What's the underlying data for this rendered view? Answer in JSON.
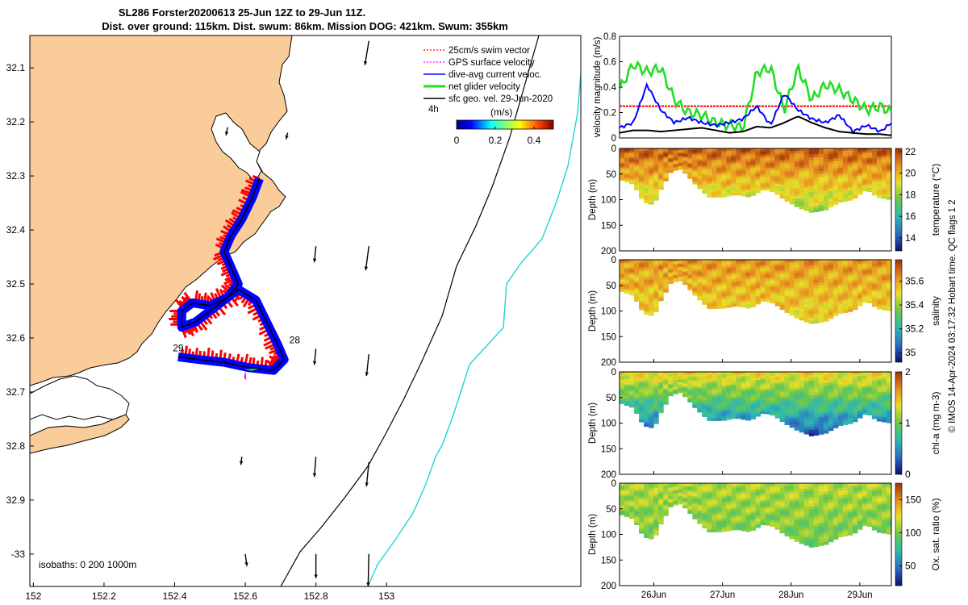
{
  "title": {
    "line1": "SL286 Forster20200613 25-Jun 12Z to 29-Jun 11Z.",
    "line2": "Dist. over ground: 115km. Dist. swum: 86km. Mission DOG: 421km. Swum: 355km"
  },
  "colors": {
    "land": "#FACC99",
    "swim": "#FF0000",
    "gps": "#FF00FF",
    "dive_avg": "#0000FF",
    "net": "#22DD22",
    "geo": "#000000",
    "isobath_1000": "#22D3D3"
  },
  "chart_data": [
    {
      "type": "map",
      "name": "track-map",
      "x_ticks": [
        "152",
        "152.2",
        "152.4",
        "152.6",
        "152.8",
        "153"
      ],
      "x_tick_values": [
        152,
        152.2,
        152.4,
        152.6,
        152.8,
        153
      ],
      "y_ticks": [
        "32.1",
        "32.2",
        "32.3",
        "32.4",
        "32.5",
        "32.6",
        "32.7",
        "32.8",
        "32.9",
        "-33"
      ],
      "y_tick_values": [
        32.1,
        32.2,
        32.3,
        32.4,
        32.5,
        32.6,
        32.7,
        32.8,
        32.9,
        33.0
      ],
      "xlim": [
        151.99,
        153.55
      ],
      "ylim": [
        32.04,
        33.06
      ],
      "legend": [
        {
          "label": "25cm/s swim vector",
          "color": "#FF0000"
        },
        {
          "label": "GPS surface velocity",
          "color": "#FF00FF"
        },
        {
          "label": "dive-avg current veloc.",
          "color": "#0000FF"
        },
        {
          "label": "net glider velocity",
          "color": "#22DD22"
        },
        {
          "label": "sfc geo. vel. 29-Jun-2020",
          "color": "#000000"
        }
      ],
      "legend_note": "4h",
      "colorbar": {
        "label": "(m/s)",
        "ticks": [
          "0",
          "0.2",
          "0.4"
        ],
        "tick_values": [
          0,
          0.2,
          0.4
        ],
        "range": [
          0,
          0.5
        ]
      },
      "isobaths_label": "isobaths: 0   200  1000m",
      "track_labels": [
        {
          "text": "28",
          "lon": 152.74,
          "lat": 32.61
        },
        {
          "text": "29",
          "lon": 152.41,
          "lat": 32.625
        }
      ],
      "track": [
        [
          152.64,
          32.305
        ],
        [
          152.62,
          32.34
        ],
        [
          152.59,
          32.38
        ],
        [
          152.56,
          32.41
        ],
        [
          152.54,
          32.44
        ],
        [
          152.56,
          32.47
        ],
        [
          152.58,
          32.5
        ],
        [
          152.55,
          32.525
        ],
        [
          152.5,
          32.54
        ],
        [
          152.45,
          32.535
        ],
        [
          152.42,
          32.55
        ],
        [
          152.42,
          32.58
        ],
        [
          152.46,
          32.57
        ],
        [
          152.51,
          32.545
        ],
        [
          152.58,
          32.51
        ],
        [
          152.63,
          32.53
        ],
        [
          152.66,
          32.57
        ],
        [
          152.69,
          32.61
        ],
        [
          152.71,
          32.64
        ],
        [
          152.68,
          32.66
        ],
        [
          152.61,
          32.655
        ],
        [
          152.54,
          32.645
        ],
        [
          152.47,
          32.64
        ],
        [
          152.41,
          32.635
        ]
      ],
      "geo_vectors": [
        {
          "lon": 152.55,
          "lat": 32.21,
          "u": -0.02,
          "v": -0.1
        },
        {
          "lon": 152.72,
          "lat": 32.22,
          "u": -0.02,
          "v": -0.08
        },
        {
          "lon": 152.8,
          "lat": 32.43,
          "u": -0.02,
          "v": -0.2
        },
        {
          "lon": 152.95,
          "lat": 32.43,
          "u": -0.04,
          "v": -0.3
        },
        {
          "lon": 152.95,
          "lat": 32.05,
          "u": -0.05,
          "v": -0.3
        },
        {
          "lon": 152.8,
          "lat": 32.62,
          "u": -0.02,
          "v": -0.2
        },
        {
          "lon": 152.95,
          "lat": 32.63,
          "u": -0.03,
          "v": -0.27
        },
        {
          "lon": 152.59,
          "lat": 32.82,
          "u": -0.01,
          "v": -0.1
        },
        {
          "lon": 152.8,
          "lat": 32.82,
          "u": -0.02,
          "v": -0.25
        },
        {
          "lon": 152.95,
          "lat": 32.83,
          "u": -0.03,
          "v": -0.3
        },
        {
          "lon": 152.6,
          "lat": 33.0,
          "u": 0.02,
          "v": -0.15
        },
        {
          "lon": 152.8,
          "lat": 33.0,
          "u": 0.0,
          "v": -0.3
        },
        {
          "lon": 152.95,
          "lat": 33.0,
          "u": -0.01,
          "v": -0.4
        }
      ]
    },
    {
      "type": "line",
      "name": "velocity-magnitude",
      "ylabel": "velocity magnitude (m/s)",
      "ylim": [
        0,
        0.8
      ],
      "y_ticks": [
        "0",
        "0.2",
        "0.4",
        "0.6",
        "0.8"
      ],
      "y_tick_values": [
        0,
        0.2,
        0.4,
        0.6,
        0.8
      ],
      "xlim": [
        25.5,
        29.46
      ],
      "x": [
        25.5,
        25.7,
        25.9,
        26.1,
        26.3,
        26.5,
        26.7,
        26.9,
        27.1,
        27.3,
        27.5,
        27.7,
        27.9,
        28.1,
        28.3,
        28.5,
        28.7,
        28.9,
        29.1,
        29.3,
        29.46
      ],
      "series": [
        {
          "color": "#22DD22",
          "values": [
            0.38,
            0.58,
            0.52,
            0.55,
            0.3,
            0.2,
            0.18,
            0.12,
            0.1,
            0.08,
            0.52,
            0.55,
            0.22,
            0.55,
            0.3,
            0.42,
            0.38,
            0.3,
            0.22,
            0.25,
            0.2
          ]
        },
        {
          "color": "#0000FF",
          "values": [
            0.08,
            0.12,
            0.42,
            0.22,
            0.12,
            0.16,
            0.12,
            0.1,
            0.12,
            0.15,
            0.25,
            0.1,
            0.35,
            0.22,
            0.15,
            0.12,
            0.18,
            0.05,
            0.1,
            0.05,
            0.12
          ]
        },
        {
          "color": "#000000",
          "values": [
            0.04,
            0.06,
            0.06,
            0.05,
            0.06,
            0.07,
            0.08,
            0.06,
            0.04,
            0.05,
            0.09,
            0.08,
            0.12,
            0.17,
            0.12,
            0.08,
            0.05,
            0.04,
            0.03,
            0.03,
            0.02
          ]
        }
      ],
      "reference_value": 0.25,
      "reference_color": "#FF0000"
    },
    {
      "type": "heatmap",
      "name": "temperature-section",
      "ylabel": "Depth (m)",
      "clabel": "temperature (°C)",
      "c_ticks": [
        "14",
        "16",
        "18",
        "20",
        "22"
      ],
      "c_tick_values": [
        14,
        16,
        18,
        20,
        22
      ],
      "clim": [
        12.8,
        22.3
      ],
      "c_colors": [
        "#10106A",
        "#2B6CC4",
        "#2EB8B0",
        "#6CC84A",
        "#E8E02A",
        "#E89020",
        "#A03008"
      ],
      "value_range": [
        18,
        21.6
      ]
    },
    {
      "type": "heatmap",
      "name": "salinity-section",
      "ylabel": "Depth (m)",
      "clabel": "salinity",
      "c_ticks": [
        "35",
        "35.2",
        "35.4",
        "35.6"
      ],
      "c_tick_values": [
        35,
        35.2,
        35.4,
        35.6
      ],
      "clim": [
        34.92,
        35.78
      ],
      "c_colors": [
        "#10106A",
        "#2B6CC4",
        "#2EB8B0",
        "#6CC84A",
        "#E8E02A",
        "#E89020",
        "#A03008"
      ],
      "value_range": [
        35.5,
        35.62
      ]
    },
    {
      "type": "heatmap",
      "name": "chla-section",
      "ylabel": "Depth (m)",
      "clabel": "chl-a (mg m-3)",
      "c_ticks": [
        "0",
        "1",
        "2"
      ],
      "c_tick_values": [
        0,
        1,
        2
      ],
      "clim": [
        0,
        2
      ],
      "c_colors": [
        "#10106A",
        "#2B6CC4",
        "#2EB8B0",
        "#6CC84A",
        "#E8E02A",
        "#E89020",
        "#A03008"
      ],
      "value_range": [
        0.2,
        1.4
      ]
    },
    {
      "type": "heatmap",
      "name": "oxygen-section",
      "ylabel": "Depth (m)",
      "clabel": "Ox. sat. ratio (%)",
      "c_ticks": [
        "50",
        "100",
        "150"
      ],
      "c_tick_values": [
        50,
        100,
        150
      ],
      "clim": [
        20,
        175
      ],
      "c_colors": [
        "#10106A",
        "#2B6CC4",
        "#2EB8B0",
        "#6CC84A",
        "#E8E02A",
        "#E89020",
        "#A03008"
      ],
      "value_range": [
        96,
        112
      ]
    }
  ],
  "sections": {
    "y_ticks": [
      "0",
      "50",
      "100",
      "150",
      "200"
    ],
    "y_tick_values": [
      0,
      50,
      100,
      150,
      200
    ],
    "ylim": [
      0,
      200
    ],
    "x_ticks": [
      "26Jun",
      "27Jun",
      "28Jun",
      "29Jun"
    ],
    "x_tick_values": [
      26,
      27,
      28,
      29
    ],
    "xlim": [
      25.5,
      29.46
    ],
    "seafloor_depths": [
      [
        25.5,
        60
      ],
      [
        25.7,
        70
      ],
      [
        25.85,
        105
      ],
      [
        26.0,
        110
      ],
      [
        26.1,
        80
      ],
      [
        26.25,
        45
      ],
      [
        26.4,
        40
      ],
      [
        26.6,
        70
      ],
      [
        26.8,
        95
      ],
      [
        27.0,
        95
      ],
      [
        27.2,
        90
      ],
      [
        27.4,
        95
      ],
      [
        27.6,
        80
      ],
      [
        27.75,
        85
      ],
      [
        27.9,
        100
      ],
      [
        28.1,
        115
      ],
      [
        28.3,
        125
      ],
      [
        28.5,
        120
      ],
      [
        28.7,
        105
      ],
      [
        28.9,
        100
      ],
      [
        29.1,
        80
      ],
      [
        29.25,
        95
      ],
      [
        29.46,
        100
      ]
    ]
  },
  "credit": "© IMOS 14-Apr-2024 03:17:32 Hobart time. QC flags 1  2"
}
